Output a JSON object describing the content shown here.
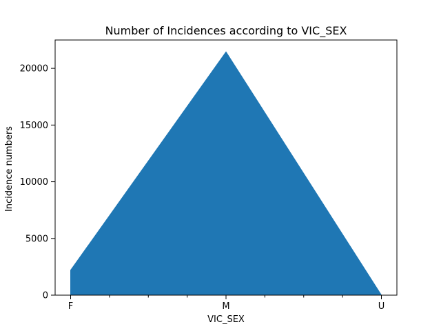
{
  "chart_data": {
    "type": "area",
    "title": "Number of Incidences according to VIC_SEX",
    "xlabel": "VIC_SEX",
    "ylabel": "Incidence numbers",
    "categories": [
      "F",
      "M",
      "U"
    ],
    "values": [
      2200,
      21450,
      0
    ],
    "ylim": [
      0,
      22500
    ],
    "yticks": [
      0,
      5000,
      10000,
      15000,
      20000
    ],
    "ytick_labels": [
      "0",
      "5000",
      "10000",
      "15000",
      "20000"
    ],
    "grid": false,
    "legend": "none",
    "fill_color": "#1f77b4"
  }
}
